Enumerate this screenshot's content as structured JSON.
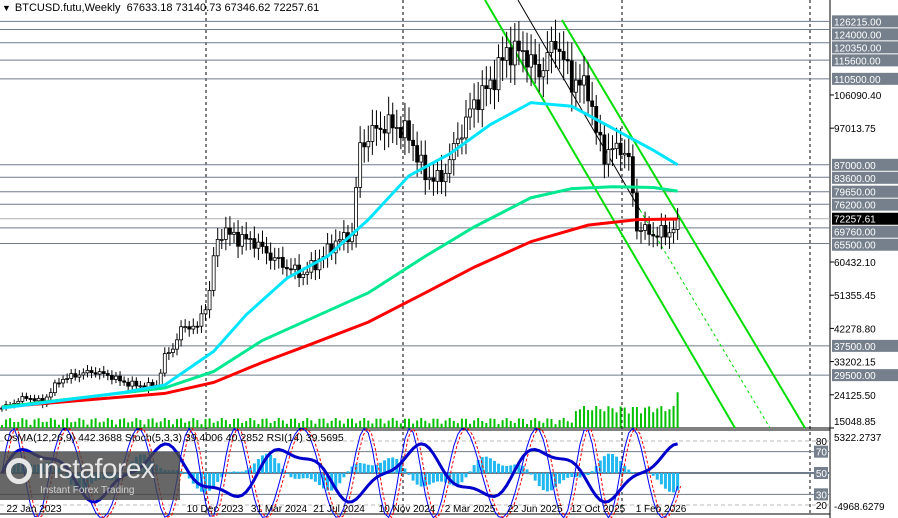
{
  "header": {
    "symbol": "BTCUSD.futu,Weekly",
    "ohlc": "67633.18 73140.73 67346.62 72257.61"
  },
  "indicators_title": "OsMA(12,26,9) 442.3688  Stoch(5,3,3) 39.4006 40.2852  RSI(14) 39.5695",
  "logo": {
    "name": "instaforex",
    "tagline": "Instant Forex Trading"
  },
  "colors": {
    "up_candle": "#000000",
    "ma_fast": "#00e5ff",
    "ma_mid": "#00e890",
    "ma_slow": "#ff0000",
    "channel": "#00dd00",
    "level_line": "#6e7b8b",
    "volume": "#00c000",
    "osma": "#22b8f0",
    "rsi": "#0000cc",
    "stoch_main": "#0000ff",
    "stoch_signal": "#ff0000"
  },
  "chart_data": {
    "type": "candlestick",
    "timeframe": "Weekly",
    "price_axis_ticks": [
      "106090.40",
      "97013.75",
      "60432.10",
      "51355.45",
      "42278.80",
      "33202.15",
      "24125.50",
      "15048.85"
    ],
    "level_labels": [
      "126215.00",
      "124000.00",
      "120350.00",
      "115600.00",
      "110500.00",
      "87000.00",
      "83600.00",
      "79650.00",
      "76200.00",
      "69760.00",
      "65500.00",
      "37500.00",
      "29500.00"
    ],
    "levels": [
      126215,
      124000,
      120350,
      115600,
      110500,
      87000,
      83600,
      79650,
      76200,
      69760,
      65500,
      37500,
      29500
    ],
    "current_price": "72257.61",
    "x_tick_labels": [
      "22 Jan 2023",
      "10 Dec 2023",
      "31 Mar 2024",
      "21 Jul 2024",
      "10 Nov 2024",
      "2 Mar 2025",
      "22 Jun 2025",
      "12 Oct 2025",
      "1 Feb 2026"
    ],
    "close_path": [
      [
        0,
        20500
      ],
      [
        6,
        23500
      ],
      [
        10,
        22000
      ],
      [
        14,
        28000
      ],
      [
        18,
        29500
      ],
      [
        22,
        30500
      ],
      [
        26,
        29500
      ],
      [
        30,
        27500
      ],
      [
        34,
        26500
      ],
      [
        38,
        26800
      ],
      [
        40,
        34500
      ],
      [
        42,
        37000
      ],
      [
        44,
        42000
      ],
      [
        46,
        43000
      ],
      [
        48,
        42500
      ],
      [
        51,
        52000
      ],
      [
        52,
        62000
      ],
      [
        54,
        69000
      ],
      [
        58,
        67000
      ],
      [
        62,
        66000
      ],
      [
        66,
        62000
      ],
      [
        70,
        59000
      ],
      [
        74,
        57000
      ],
      [
        78,
        61000
      ],
      [
        82,
        66000
      ],
      [
        86,
        68000
      ],
      [
        88,
        92000
      ],
      [
        92,
        97000
      ],
      [
        96,
        98000
      ],
      [
        100,
        95000
      ],
      [
        104,
        84000
      ],
      [
        108,
        83000
      ],
      [
        112,
        94000
      ],
      [
        116,
        104000
      ],
      [
        120,
        109000
      ],
      [
        124,
        118000
      ],
      [
        128,
        118000
      ],
      [
        132,
        112000
      ],
      [
        136,
        121000
      ],
      [
        140,
        110000
      ],
      [
        144,
        108000
      ],
      [
        146,
        96000
      ],
      [
        148,
        90000
      ],
      [
        152,
        92000
      ],
      [
        154,
        88000
      ],
      [
        156,
        70000
      ],
      [
        160,
        68000
      ],
      [
        164,
        68500
      ],
      [
        166,
        72257
      ]
    ],
    "ma_fast": [
      [
        0,
        20500
      ],
      [
        30,
        24800
      ],
      [
        40,
        26800
      ],
      [
        52,
        36000
      ],
      [
        60,
        46000
      ],
      [
        70,
        56000
      ],
      [
        80,
        62000
      ],
      [
        90,
        72000
      ],
      [
        100,
        84000
      ],
      [
        110,
        90000
      ],
      [
        120,
        98000
      ],
      [
        130,
        104000
      ],
      [
        140,
        103000
      ],
      [
        150,
        97000
      ],
      [
        160,
        91000
      ],
      [
        166,
        87000
      ]
    ],
    "ma_mid": [
      [
        0,
        20800
      ],
      [
        40,
        26000
      ],
      [
        52,
        30500
      ],
      [
        64,
        39000
      ],
      [
        76,
        45000
      ],
      [
        90,
        52000
      ],
      [
        104,
        62000
      ],
      [
        116,
        70000
      ],
      [
        130,
        78000
      ],
      [
        140,
        80500
      ],
      [
        150,
        81000
      ],
      [
        160,
        80800
      ],
      [
        166,
        79800
      ]
    ],
    "ma_slow": [
      [
        0,
        20800
      ],
      [
        40,
        24500
      ],
      [
        52,
        27500
      ],
      [
        64,
        33000
      ],
      [
        76,
        38000
      ],
      [
        90,
        44000
      ],
      [
        104,
        52000
      ],
      [
        116,
        59000
      ],
      [
        130,
        66000
      ],
      [
        144,
        70500
      ],
      [
        156,
        72000
      ],
      [
        166,
        72200
      ]
    ],
    "indicator_levels": [
      80,
      70,
      50,
      30,
      20
    ],
    "indicator_axis": [
      "5322.2737",
      "-4968.6279"
    ]
  }
}
